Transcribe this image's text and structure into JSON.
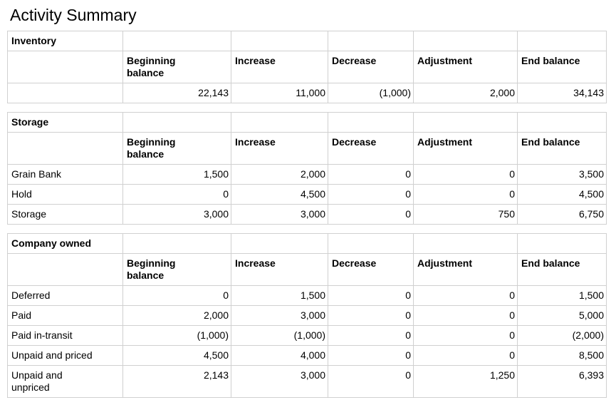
{
  "page": {
    "title": "Activity Summary"
  },
  "columns": [
    "",
    "Beginning balance",
    "Increase",
    "Decrease",
    "Adjustment",
    "End balance"
  ],
  "tables": [
    {
      "section": "Inventory",
      "rows": [
        {
          "label": "",
          "values": [
            "22,143",
            "11,000",
            "(1,000)",
            "2,000",
            "34,143"
          ]
        }
      ]
    },
    {
      "section": "Storage",
      "rows": [
        {
          "label": "Grain Bank",
          "values": [
            "1,500",
            "2,000",
            "0",
            "0",
            "3,500"
          ]
        },
        {
          "label": "Hold",
          "values": [
            "0",
            "4,500",
            "0",
            "0",
            "4,500"
          ]
        },
        {
          "label": "Storage",
          "values": [
            "3,000",
            "3,000",
            "0",
            "750",
            "6,750"
          ]
        }
      ]
    },
    {
      "section": "Company owned",
      "rows": [
        {
          "label": "Deferred",
          "values": [
            "0",
            "1,500",
            "0",
            "0",
            "1,500"
          ]
        },
        {
          "label": "Paid",
          "values": [
            "2,000",
            "3,000",
            "0",
            "0",
            "5,000"
          ]
        },
        {
          "label": "Paid in-transit",
          "values": [
            "(1,000)",
            "(1,000)",
            "0",
            "0",
            "(2,000)"
          ]
        },
        {
          "label": "Unpaid and priced",
          "values": [
            "4,500",
            "4,000",
            "0",
            "0",
            "8,500"
          ]
        },
        {
          "label": "Unpaid and unpriced",
          "values": [
            "2,143",
            "3,000",
            "0",
            "1,250",
            "6,393"
          ]
        }
      ]
    }
  ]
}
